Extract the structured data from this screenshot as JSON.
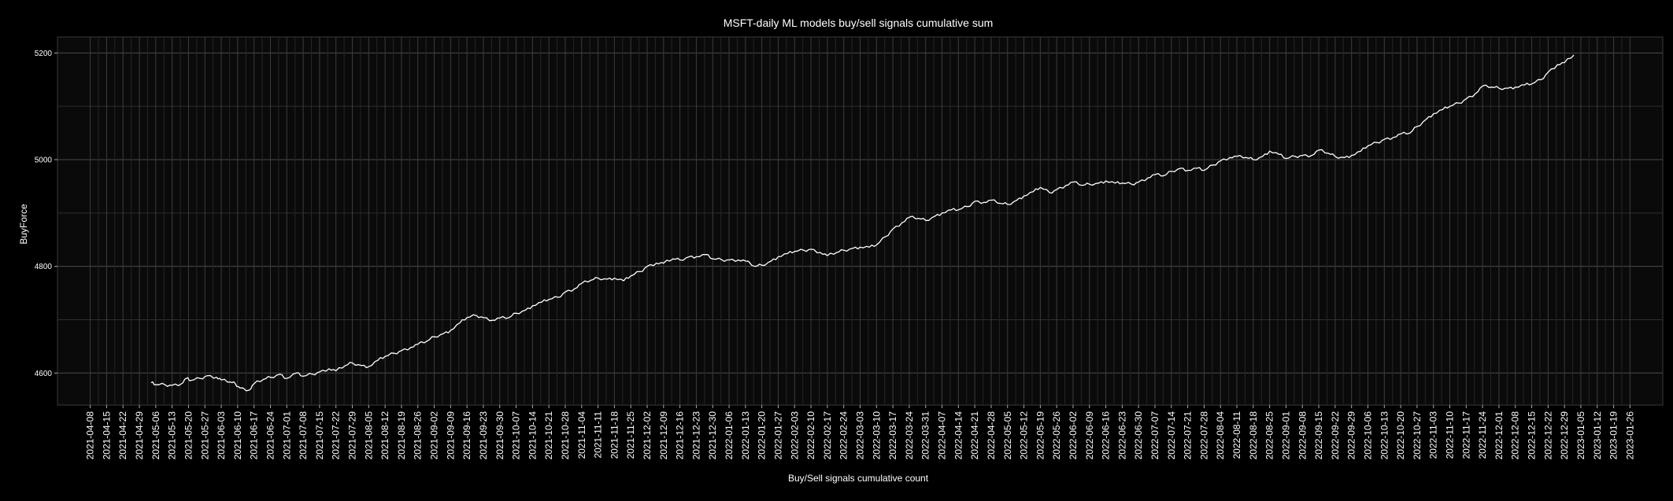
{
  "chart_data": {
    "type": "line",
    "title": "MSFT-daily ML models buy/sell signals cumulative sum",
    "xlabel": "Buy/Sell signals cumulative count",
    "ylabel": "BuyForce",
    "x_range": [
      "2021-04-08",
      "2023-01-26"
    ],
    "ylim": [
      4540,
      5230
    ],
    "y_ticks": [
      4600,
      4800,
      5000,
      5200
    ],
    "x_ticks": [
      "2021-04-08",
      "2021-04-15",
      "2021-04-22",
      "2021-04-29",
      "2021-05-06",
      "2021-05-13",
      "2021-05-20",
      "2021-05-27",
      "2021-06-03",
      "2021-06-10",
      "2021-06-17",
      "2021-06-24",
      "2021-07-01",
      "2021-07-08",
      "2021-07-15",
      "2021-07-22",
      "2021-07-29",
      "2021-08-05",
      "2021-08-12",
      "2021-08-19",
      "2021-08-26",
      "2021-09-02",
      "2021-09-09",
      "2021-09-16",
      "2021-09-23",
      "2021-09-30",
      "2021-10-07",
      "2021-10-14",
      "2021-10-21",
      "2021-10-28",
      "2021-11-04",
      "2021-11-11",
      "2021-11-18",
      "2021-11-25",
      "2021-12-02",
      "2021-12-09",
      "2021-12-16",
      "2021-12-23",
      "2021-12-30",
      "2022-01-06",
      "2022-01-13",
      "2022-01-20",
      "2022-01-27",
      "2022-02-03",
      "2022-02-10",
      "2022-02-17",
      "2022-02-24",
      "2022-03-03",
      "2022-03-10",
      "2022-03-17",
      "2022-03-24",
      "2022-03-31",
      "2022-04-07",
      "2022-04-14",
      "2022-04-21",
      "2022-04-28",
      "2022-05-05",
      "2022-05-12",
      "2022-05-19",
      "2022-05-26",
      "2022-06-02",
      "2022-06-09",
      "2022-06-16",
      "2022-06-23",
      "2022-06-30",
      "2022-07-07",
      "2022-07-14",
      "2022-07-21",
      "2022-07-28",
      "2022-08-04",
      "2022-08-11",
      "2022-08-18",
      "2022-08-25",
      "2022-09-01",
      "2022-09-08",
      "2022-09-15",
      "2022-09-22",
      "2022-09-29",
      "2022-10-06",
      "2022-10-13",
      "2022-10-20",
      "2022-10-27",
      "2022-11-03",
      "2022-11-10",
      "2022-11-17",
      "2022-11-24",
      "2022-12-01",
      "2022-12-08",
      "2022-12-15",
      "2022-12-22",
      "2022-12-29",
      "2023-01-05",
      "2023-01-12",
      "2023-01-19",
      "2023-01-26"
    ],
    "grid": true,
    "series": [
      {
        "line_color": "#ffffff",
        "points": [
          [
            "2021-05-04",
            4582
          ],
          [
            "2021-05-06",
            4578
          ],
          [
            "2021-05-10",
            4578
          ],
          [
            "2021-05-13",
            4577
          ],
          [
            "2021-05-17",
            4580
          ],
          [
            "2021-05-19",
            4590
          ],
          [
            "2021-05-21",
            4586
          ],
          [
            "2021-05-25",
            4590
          ],
          [
            "2021-05-28",
            4595
          ],
          [
            "2021-06-01",
            4592
          ],
          [
            "2021-06-03",
            4587
          ],
          [
            "2021-06-07",
            4583
          ],
          [
            "2021-06-09",
            4580
          ],
          [
            "2021-06-11",
            4572
          ],
          [
            "2021-06-15",
            4568
          ],
          [
            "2021-06-17",
            4580
          ],
          [
            "2021-06-21",
            4588
          ],
          [
            "2021-06-24",
            4592
          ],
          [
            "2021-06-28",
            4598
          ],
          [
            "2021-07-01",
            4590
          ],
          [
            "2021-07-05",
            4600
          ],
          [
            "2021-07-08",
            4594
          ],
          [
            "2021-07-12",
            4598
          ],
          [
            "2021-07-15",
            4602
          ],
          [
            "2021-07-19",
            4608
          ],
          [
            "2021-07-22",
            4604
          ],
          [
            "2021-07-26",
            4614
          ],
          [
            "2021-07-29",
            4619
          ],
          [
            "2021-08-02",
            4614
          ],
          [
            "2021-08-05",
            4612
          ],
          [
            "2021-08-09",
            4624
          ],
          [
            "2021-08-12",
            4631
          ],
          [
            "2021-08-16",
            4637
          ],
          [
            "2021-08-19",
            4642
          ],
          [
            "2021-08-23",
            4648
          ],
          [
            "2021-08-26",
            4654
          ],
          [
            "2021-08-30",
            4660
          ],
          [
            "2021-09-02",
            4668
          ],
          [
            "2021-09-06",
            4674
          ],
          [
            "2021-09-09",
            4680
          ],
          [
            "2021-09-13",
            4694
          ],
          [
            "2021-09-16",
            4704
          ],
          [
            "2021-09-20",
            4708
          ],
          [
            "2021-09-23",
            4704
          ],
          [
            "2021-09-27",
            4699
          ],
          [
            "2021-09-30",
            4703
          ],
          [
            "2021-10-04",
            4704
          ],
          [
            "2021-10-07",
            4712
          ],
          [
            "2021-10-11",
            4718
          ],
          [
            "2021-10-14",
            4726
          ],
          [
            "2021-10-18",
            4733
          ],
          [
            "2021-10-21",
            4738
          ],
          [
            "2021-10-25",
            4742
          ],
          [
            "2021-10-28",
            4752
          ],
          [
            "2021-11-01",
            4758
          ],
          [
            "2021-11-04",
            4768
          ],
          [
            "2021-11-08",
            4774
          ],
          [
            "2021-11-11",
            4778
          ],
          [
            "2021-11-15",
            4776
          ],
          [
            "2021-11-18",
            4778
          ],
          [
            "2021-11-22",
            4773
          ],
          [
            "2021-11-25",
            4782
          ],
          [
            "2021-11-29",
            4790
          ],
          [
            "2021-12-02",
            4800
          ],
          [
            "2021-12-06",
            4806
          ],
          [
            "2021-12-09",
            4806
          ],
          [
            "2021-12-13",
            4814
          ],
          [
            "2021-12-16",
            4812
          ],
          [
            "2021-12-20",
            4818
          ],
          [
            "2021-12-23",
            4818
          ],
          [
            "2021-12-27",
            4822
          ],
          [
            "2021-12-30",
            4814
          ],
          [
            "2022-01-03",
            4812
          ],
          [
            "2022-01-06",
            4812
          ],
          [
            "2022-01-10",
            4812
          ],
          [
            "2022-01-13",
            4810
          ],
          [
            "2022-01-17",
            4800
          ],
          [
            "2022-01-20",
            4802
          ],
          [
            "2022-01-24",
            4810
          ],
          [
            "2022-01-27",
            4818
          ],
          [
            "2022-01-31",
            4824
          ],
          [
            "2022-02-03",
            4828
          ],
          [
            "2022-02-07",
            4830
          ],
          [
            "2022-02-10",
            4832
          ],
          [
            "2022-02-14",
            4826
          ],
          [
            "2022-02-17",
            4820
          ],
          [
            "2022-02-21",
            4826
          ],
          [
            "2022-02-24",
            4830
          ],
          [
            "2022-02-28",
            4834
          ],
          [
            "2022-03-03",
            4836
          ],
          [
            "2022-03-07",
            4836
          ],
          [
            "2022-03-10",
            4840
          ],
          [
            "2022-03-14",
            4856
          ],
          [
            "2022-03-17",
            4870
          ],
          [
            "2022-03-21",
            4882
          ],
          [
            "2022-03-24",
            4892
          ],
          [
            "2022-03-28",
            4890
          ],
          [
            "2022-03-31",
            4886
          ],
          [
            "2022-04-04",
            4894
          ],
          [
            "2022-04-07",
            4900
          ],
          [
            "2022-04-11",
            4906
          ],
          [
            "2022-04-14",
            4906
          ],
          [
            "2022-04-18",
            4912
          ],
          [
            "2022-04-21",
            4922
          ],
          [
            "2022-04-25",
            4920
          ],
          [
            "2022-04-28",
            4924
          ],
          [
            "2022-05-02",
            4918
          ],
          [
            "2022-05-05",
            4916
          ],
          [
            "2022-05-09",
            4924
          ],
          [
            "2022-05-12",
            4932
          ],
          [
            "2022-05-16",
            4940
          ],
          [
            "2022-05-19",
            4948
          ],
          [
            "2022-05-23",
            4938
          ],
          [
            "2022-05-26",
            4944
          ],
          [
            "2022-05-30",
            4952
          ],
          [
            "2022-06-02",
            4958
          ],
          [
            "2022-06-06",
            4952
          ],
          [
            "2022-06-09",
            4954
          ],
          [
            "2022-06-13",
            4956
          ],
          [
            "2022-06-16",
            4960
          ],
          [
            "2022-06-20",
            4956
          ],
          [
            "2022-06-23",
            4956
          ],
          [
            "2022-06-27",
            4954
          ],
          [
            "2022-06-30",
            4958
          ],
          [
            "2022-07-04",
            4966
          ],
          [
            "2022-07-07",
            4972
          ],
          [
            "2022-07-11",
            4970
          ],
          [
            "2022-07-14",
            4978
          ],
          [
            "2022-07-18",
            4984
          ],
          [
            "2022-07-21",
            4980
          ],
          [
            "2022-07-25",
            4984
          ],
          [
            "2022-07-28",
            4980
          ],
          [
            "2022-08-01",
            4990
          ],
          [
            "2022-08-04",
            4998
          ],
          [
            "2022-08-08",
            5004
          ],
          [
            "2022-08-11",
            5006
          ],
          [
            "2022-08-15",
            5004
          ],
          [
            "2022-08-18",
            5000
          ],
          [
            "2022-08-22",
            5006
          ],
          [
            "2022-08-25",
            5016
          ],
          [
            "2022-08-29",
            5010
          ],
          [
            "2022-09-01",
            5002
          ],
          [
            "2022-09-05",
            5006
          ],
          [
            "2022-09-08",
            5008
          ],
          [
            "2022-09-12",
            5008
          ],
          [
            "2022-09-15",
            5018
          ],
          [
            "2022-09-19",
            5012
          ],
          [
            "2022-09-22",
            5006
          ],
          [
            "2022-09-26",
            5004
          ],
          [
            "2022-09-29",
            5008
          ],
          [
            "2022-10-03",
            5016
          ],
          [
            "2022-10-06",
            5026
          ],
          [
            "2022-10-10",
            5032
          ],
          [
            "2022-10-13",
            5038
          ],
          [
            "2022-10-17",
            5042
          ],
          [
            "2022-10-20",
            5048
          ],
          [
            "2022-10-24",
            5050
          ],
          [
            "2022-10-27",
            5062
          ],
          [
            "2022-10-31",
            5076
          ],
          [
            "2022-11-03",
            5086
          ],
          [
            "2022-11-07",
            5094
          ],
          [
            "2022-11-10",
            5100
          ],
          [
            "2022-11-14",
            5106
          ],
          [
            "2022-11-17",
            5114
          ],
          [
            "2022-11-21",
            5124
          ],
          [
            "2022-11-24",
            5138
          ],
          [
            "2022-11-28",
            5136
          ],
          [
            "2022-12-01",
            5134
          ],
          [
            "2022-12-05",
            5134
          ],
          [
            "2022-12-08",
            5136
          ],
          [
            "2022-12-12",
            5140
          ],
          [
            "2022-12-15",
            5142
          ],
          [
            "2022-12-19",
            5150
          ],
          [
            "2022-12-22",
            5164
          ],
          [
            "2022-12-26",
            5178
          ],
          [
            "2022-12-29",
            5182
          ],
          [
            "2023-01-02",
            5196
          ]
        ]
      }
    ]
  }
}
